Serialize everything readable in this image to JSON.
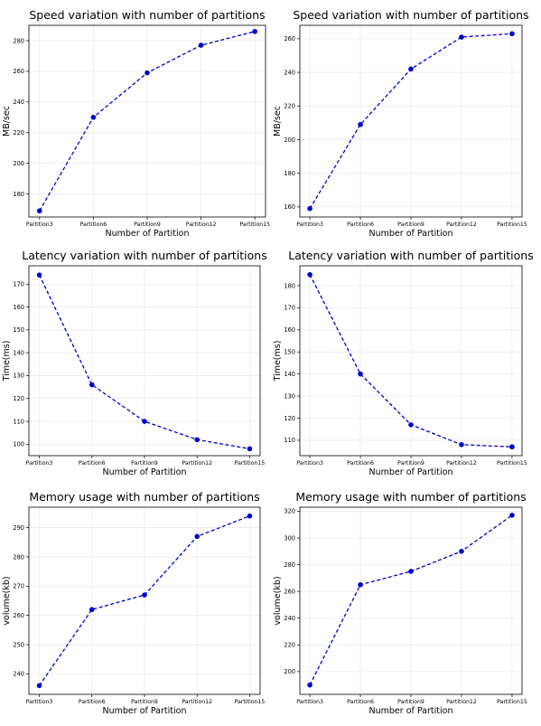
{
  "figure": {
    "background": "#ffffff",
    "line_color": "#0000cc",
    "marker_color": "#0000cc",
    "grid_color": "#e6e6e6"
  },
  "chart_data": [
    {
      "type": "line",
      "title": "Speed variation with number of partitions",
      "xlabel": "Number of Partition",
      "ylabel": "MB/sec",
      "categories": [
        "Partition3",
        "Partition6",
        "Partition9",
        "Partition12",
        "Partition15"
      ],
      "values": [
        169,
        230,
        259,
        277,
        286
      ],
      "yticks": [
        180,
        200,
        220,
        240,
        260,
        280
      ],
      "ylim": [
        165,
        290
      ],
      "grid": true,
      "line_style": "dashed",
      "marker": "circle"
    },
    {
      "type": "line",
      "title": "Speed variation with number of partitions",
      "xlabel": "Number of Partition",
      "ylabel": "MB/sec",
      "categories": [
        "Partition3",
        "Partition6",
        "Partition9",
        "Partition12",
        "Partition15"
      ],
      "values": [
        159,
        209,
        242,
        261,
        263
      ],
      "yticks": [
        160,
        180,
        200,
        220,
        240,
        260
      ],
      "ylim": [
        154,
        268
      ],
      "grid": true,
      "line_style": "dashed",
      "marker": "circle"
    },
    {
      "type": "line",
      "title": "Latency variation with number of partitions",
      "xlabel": "Number of Partition",
      "ylabel": "Time(ms)",
      "categories": [
        "Partition3",
        "Partition6",
        "Partition9",
        "Partition12",
        "Partition15"
      ],
      "values": [
        174,
        126,
        110,
        102,
        98
      ],
      "yticks": [
        100,
        110,
        120,
        130,
        140,
        150,
        160,
        170
      ],
      "ylim": [
        95,
        178
      ],
      "grid": true,
      "line_style": "dashed",
      "marker": "circle"
    },
    {
      "type": "line",
      "title": "Latency variation with number of partitions",
      "xlabel": "Number of Partition",
      "ylabel": "Time(ms)",
      "categories": [
        "Partition3",
        "Partition6",
        "Partition9",
        "Partition12",
        "Partition15"
      ],
      "values": [
        185,
        140,
        117,
        108,
        107
      ],
      "yticks": [
        110,
        120,
        130,
        140,
        150,
        160,
        170,
        180
      ],
      "ylim": [
        103,
        189
      ],
      "grid": true,
      "line_style": "dashed",
      "marker": "circle"
    },
    {
      "type": "line",
      "title": "Memory usage with number of partitions",
      "xlabel": "Number of Partition",
      "ylabel": "volume(kb)",
      "categories": [
        "Partition3",
        "Partition6",
        "Partition9",
        "Partition12",
        "Partition15"
      ],
      "values": [
        236,
        262,
        267,
        287,
        294
      ],
      "yticks": [
        240,
        250,
        260,
        270,
        280,
        290
      ],
      "ylim": [
        233,
        297
      ],
      "grid": true,
      "line_style": "dashed",
      "marker": "circle"
    },
    {
      "type": "line",
      "title": "Memory usage with number of partitions",
      "xlabel": "Number of Partition",
      "ylabel": "volume(kb)",
      "categories": [
        "Partition3",
        "Partition6",
        "Partition9",
        "Partition12",
        "Partition15"
      ],
      "values": [
        190,
        265,
        275,
        290,
        317
      ],
      "yticks": [
        200,
        220,
        240,
        260,
        280,
        300,
        320
      ],
      "ylim": [
        183,
        323
      ],
      "grid": true,
      "line_style": "dashed",
      "marker": "circle"
    }
  ]
}
